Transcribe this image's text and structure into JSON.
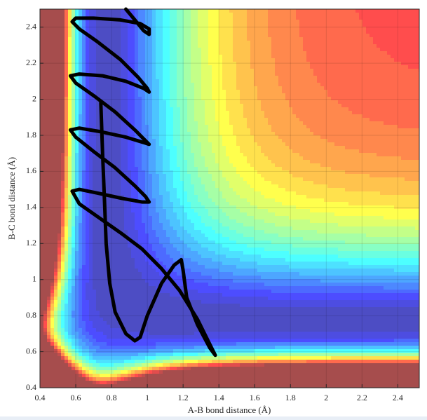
{
  "chart_data": {
    "type": "line",
    "xlabel": "A-B bond distance (Å)",
    "ylabel": "B-C bond distance (Å)",
    "x": [
      0.88,
      0.93,
      0.98,
      1.01,
      1.01,
      0.96,
      0.85,
      0.7,
      0.6,
      0.58,
      0.62,
      0.72,
      0.85,
      0.95,
      1.0,
      1.01,
      0.98,
      0.88,
      0.75,
      0.62,
      0.57,
      0.6,
      0.7,
      0.82,
      0.93,
      0.99,
      1.01,
      0.98,
      0.88,
      0.74,
      0.62,
      0.57,
      0.6,
      0.7,
      0.82,
      0.93,
      0.99,
      1.01,
      0.97,
      0.86,
      0.72,
      0.62,
      0.58,
      0.62,
      0.72,
      0.85,
      0.97,
      1.08,
      1.18,
      1.28,
      1.35,
      1.38,
      1.35,
      1.28,
      1.22,
      1.2,
      1.19,
      1.15,
      1.08,
      1.0,
      0.96,
      0.93,
      0.88,
      0.82,
      0.79,
      0.77,
      0.76,
      0.75,
      0.74
    ],
    "series": [
      {
        "color": "#000000",
        "values": [
          2.5,
          2.44,
          2.38,
          2.36,
          2.39,
          2.42,
          2.44,
          2.45,
          2.45,
          2.43,
          2.39,
          2.32,
          2.22,
          2.12,
          2.06,
          2.04,
          2.06,
          2.1,
          2.13,
          2.14,
          2.13,
          2.09,
          2.02,
          1.93,
          1.83,
          1.77,
          1.75,
          1.76,
          1.79,
          1.82,
          1.84,
          1.83,
          1.79,
          1.71,
          1.62,
          1.52,
          1.46,
          1.43,
          1.43,
          1.45,
          1.48,
          1.5,
          1.49,
          1.42,
          1.35,
          1.26,
          1.17,
          1.06,
          0.94,
          0.78,
          0.64,
          0.58,
          0.62,
          0.75,
          0.9,
          1.05,
          1.11,
          1.08,
          0.98,
          0.8,
          0.68,
          0.66,
          0.7,
          0.82,
          0.98,
          1.2,
          1.45,
          1.7,
          1.98
        ]
      }
    ],
    "xlim": [
      0.4,
      2.52
    ],
    "ylim": [
      0.4,
      2.5
    ],
    "xticks": [
      0.4,
      0.6,
      0.8,
      1,
      1.2,
      1.4,
      1.6,
      1.8,
      2,
      2.2,
      2.4
    ],
    "yticks": [
      0.4,
      0.6,
      0.8,
      1,
      1.2,
      1.4,
      1.6,
      1.8,
      2,
      2.2,
      2.4
    ],
    "grid": true
  }
}
